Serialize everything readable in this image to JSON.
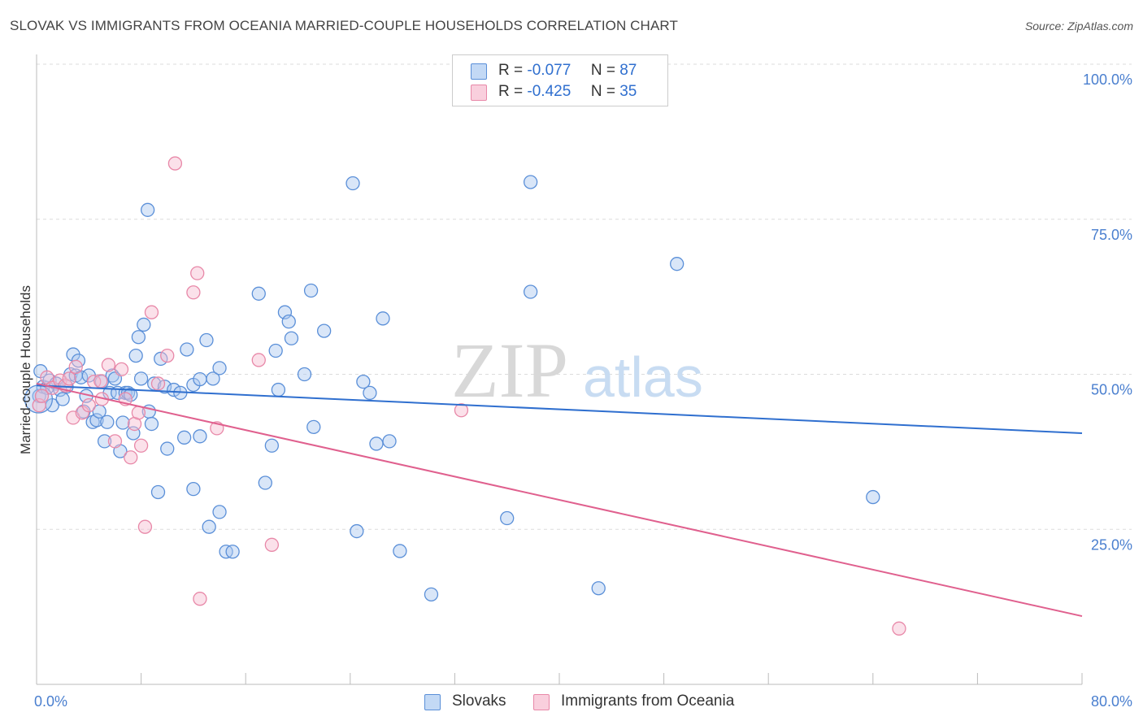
{
  "header": {
    "title": "SLOVAK VS IMMIGRANTS FROM OCEANIA MARRIED-COUPLE HOUSEHOLDS CORRELATION CHART",
    "source": "Source: ZipAtlas.com"
  },
  "legend": {
    "r_label": "R =",
    "n_label": "N =",
    "rows": [
      {
        "r": "-0.077",
        "n": "87"
      },
      {
        "r": "-0.425",
        "n": "35"
      }
    ]
  },
  "watermark": {
    "zip": "ZIP",
    "atlas": "atlas"
  },
  "colors": {
    "blue_fill": "#aac8f0",
    "blue_stroke": "#5a8fd8",
    "blue_line": "#2f6fcf",
    "pink_fill": "#f6bdd0",
    "pink_stroke": "#e888a8",
    "pink_line": "#e0608e"
  },
  "chart_data": {
    "type": "scatter",
    "title": "SLOVAK VS IMMIGRANTS FROM OCEANIA MARRIED-COUPLE HOUSEHOLDS CORRELATION CHART",
    "xlabel": "",
    "ylabel": "Married-couple Households",
    "xlim": [
      0,
      80
    ],
    "ylim": [
      0,
      100
    ],
    "x_tick_labels": [
      "0.0%",
      "80.0%"
    ],
    "y_tick_labels": [
      "25.0%",
      "50.0%",
      "75.0%",
      "100.0%"
    ],
    "y_tick_values": [
      25,
      50,
      75,
      100
    ],
    "series": [
      {
        "name": "Slovaks",
        "color": "#5a8fd8",
        "trend": {
          "x0": 0,
          "y0": 48.2,
          "x1": 80,
          "y1": 40.5
        },
        "points": [
          [
            0.2,
            46.5
          ],
          [
            0.3,
            50.5
          ],
          [
            0.5,
            48
          ],
          [
            0.8,
            47.8
          ],
          [
            1.0,
            49
          ],
          [
            1.2,
            45
          ],
          [
            1.5,
            48.5
          ],
          [
            1.8,
            47.5
          ],
          [
            2.0,
            46
          ],
          [
            2.3,
            48
          ],
          [
            2.6,
            50
          ],
          [
            2.8,
            53.2
          ],
          [
            3.0,
            49.8
          ],
          [
            3.2,
            52.2
          ],
          [
            3.4,
            49.5
          ],
          [
            3.6,
            44
          ],
          [
            3.8,
            46.5
          ],
          [
            4.0,
            49.8
          ],
          [
            4.3,
            42.3
          ],
          [
            4.6,
            42.6
          ],
          [
            4.8,
            44
          ],
          [
            5.0,
            48.8
          ],
          [
            5.2,
            39.2
          ],
          [
            5.4,
            42.3
          ],
          [
            5.6,
            47
          ],
          [
            5.8,
            49.8
          ],
          [
            6.0,
            49.3
          ],
          [
            6.2,
            47
          ],
          [
            6.4,
            37.6
          ],
          [
            6.6,
            42.2
          ],
          [
            6.8,
            47
          ],
          [
            7.0,
            47
          ],
          [
            7.2,
            46.7
          ],
          [
            7.4,
            40.5
          ],
          [
            7.6,
            53
          ],
          [
            7.8,
            56
          ],
          [
            8.0,
            49.3
          ],
          [
            8.2,
            58
          ],
          [
            8.6,
            44
          ],
          [
            8.8,
            42
          ],
          [
            9.0,
            48.5
          ],
          [
            9.5,
            52.5
          ],
          [
            9.8,
            48
          ],
          [
            10.0,
            38
          ],
          [
            10.5,
            47.5
          ],
          [
            11.0,
            47
          ],
          [
            11.5,
            54
          ],
          [
            12.0,
            48.3
          ],
          [
            12.5,
            49.2
          ],
          [
            13.0,
            55.5
          ],
          [
            13.5,
            49.3
          ],
          [
            14.0,
            51
          ],
          [
            8.5,
            76.5
          ],
          [
            12.5,
            40
          ],
          [
            12.0,
            31.5
          ],
          [
            14.0,
            27.8
          ],
          [
            13.2,
            25.4
          ],
          [
            14.5,
            21.4
          ],
          [
            15.0,
            21.4
          ],
          [
            9.3,
            31
          ],
          [
            11.3,
            39.8
          ],
          [
            17.0,
            63
          ],
          [
            17.5,
            32.5
          ],
          [
            18.0,
            38.5
          ],
          [
            18.3,
            53.8
          ],
          [
            18.5,
            47.5
          ],
          [
            19.0,
            60
          ],
          [
            19.3,
            58.5
          ],
          [
            19.5,
            55.8
          ],
          [
            20.5,
            50
          ],
          [
            21.0,
            63.5
          ],
          [
            21.2,
            41.5
          ],
          [
            22.0,
            57
          ],
          [
            25.0,
            48.8
          ],
          [
            24.5,
            24.7
          ],
          [
            25.5,
            47
          ],
          [
            26.0,
            38.8
          ],
          [
            26.5,
            59
          ],
          [
            27.0,
            39.2
          ],
          [
            27.8,
            21.5
          ],
          [
            30.2,
            14.5
          ],
          [
            36.0,
            26.8
          ],
          [
            37.8,
            63.3
          ],
          [
            37.8,
            81
          ],
          [
            43.0,
            15.5
          ],
          [
            49.0,
            67.8
          ],
          [
            64.0,
            30.2
          ],
          [
            24.2,
            80.8
          ]
        ]
      },
      {
        "name": "Immigrants from Oceania",
        "color": "#e888a8",
        "trend": {
          "x0": 0,
          "y0": 48.5,
          "x1": 80,
          "y1": 11
        },
        "points": [
          [
            0.2,
            45
          ],
          [
            0.4,
            46.5
          ],
          [
            0.8,
            49.5
          ],
          [
            1.2,
            47.8
          ],
          [
            1.8,
            49
          ],
          [
            2.2,
            48.2
          ],
          [
            2.8,
            43
          ],
          [
            3.0,
            51.2
          ],
          [
            3.5,
            43.8
          ],
          [
            4.0,
            45
          ],
          [
            4.4,
            48.8
          ],
          [
            5.0,
            46
          ],
          [
            5.5,
            51.5
          ],
          [
            6.0,
            39.2
          ],
          [
            6.5,
            50.8
          ],
          [
            6.8,
            46
          ],
          [
            7.2,
            36.6
          ],
          [
            7.5,
            42
          ],
          [
            7.8,
            43.8
          ],
          [
            8.0,
            38.5
          ],
          [
            8.3,
            25.4
          ],
          [
            8.8,
            60
          ],
          [
            9.3,
            48.5
          ],
          [
            10.0,
            53
          ],
          [
            10.6,
            84
          ],
          [
            12.0,
            63.2
          ],
          [
            12.3,
            66.3
          ],
          [
            12.5,
            13.8
          ],
          [
            13.8,
            41.3
          ],
          [
            17.0,
            52.3
          ],
          [
            18.0,
            22.5
          ],
          [
            32.5,
            44.2
          ],
          [
            66.0,
            9
          ],
          [
            4.9,
            48.9
          ],
          [
            2.5,
            49.3
          ]
        ]
      }
    ]
  }
}
